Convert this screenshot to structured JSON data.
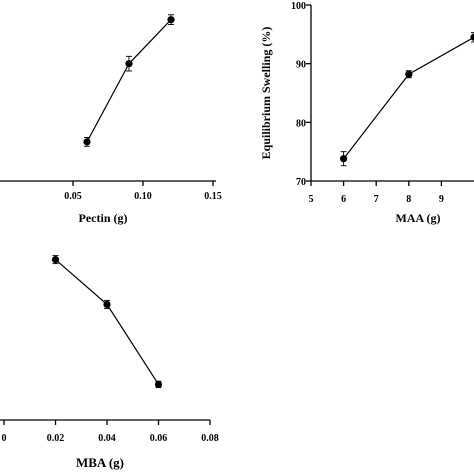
{
  "chart_data": [
    {
      "id": "pectin",
      "type": "scatter",
      "xlabel": "Pectin (g)",
      "ylabel": "",
      "xlim": [
        0.0,
        0.15
      ],
      "xticks": [
        0.05,
        0.1,
        0.15
      ],
      "xtick_labels": [
        "0.05",
        "0.10",
        "0.15"
      ],
      "ylim": [
        64,
        100
      ],
      "yticks": [],
      "ytick_labels": [],
      "grid": false,
      "series": [
        {
          "x": [
            0.06,
            0.09,
            0.12
          ],
          "y": [
            72,
            88,
            97
          ],
          "err": [
            0.9,
            1.5,
            1.0
          ]
        }
      ]
    },
    {
      "id": "maa",
      "type": "scatter",
      "xlabel": "MAA (g)",
      "ylabel": "Equilibrium Swelling (%)",
      "xlim": [
        5,
        10
      ],
      "xticks": [
        5,
        6,
        7,
        8,
        9
      ],
      "xtick_labels": [
        "5",
        "6",
        "7",
        "8",
        "9"
      ],
      "ylim": [
        70,
        100
      ],
      "yticks": [
        70,
        80,
        90,
        100
      ],
      "ytick_labels": [
        "70",
        "80",
        "90",
        "100"
      ],
      "grid": false,
      "series": [
        {
          "x": [
            6,
            8,
            10
          ],
          "y": [
            73.8,
            88.2,
            94.5
          ],
          "err": [
            1.2,
            0.6,
            0.8
          ]
        }
      ]
    },
    {
      "id": "mba",
      "type": "scatter",
      "xlabel": "MBA (g)",
      "ylabel": "",
      "xlim": [
        0.0,
        0.08
      ],
      "xticks": [
        0.0,
        0.02,
        0.04,
        0.06,
        0.08
      ],
      "xtick_labels": [
        "0",
        "0.02",
        "0.04",
        "0.06",
        "0.08"
      ],
      "ylim": [
        0,
        100
      ],
      "yticks": [],
      "ytick_labels": [],
      "grid": false,
      "series": [
        {
          "x": [
            0.02,
            0.04,
            0.06
          ],
          "y": [
            94,
            66,
            16
          ],
          "err": [
            2.5,
            2.5,
            2.0
          ]
        }
      ]
    }
  ]
}
